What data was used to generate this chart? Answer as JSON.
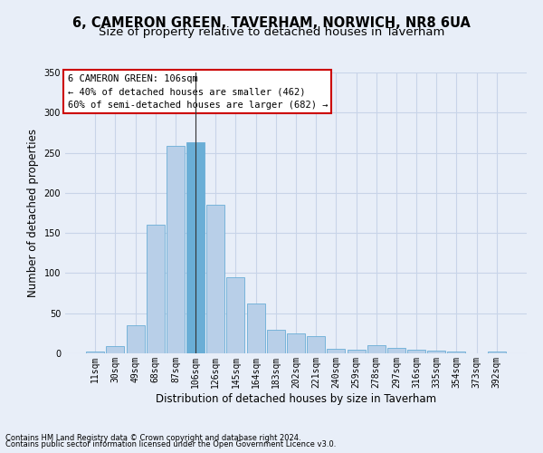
{
  "title1": "6, CAMERON GREEN, TAVERHAM, NORWICH, NR8 6UA",
  "title2": "Size of property relative to detached houses in Taverham",
  "xlabel": "Distribution of detached houses by size in Taverham",
  "ylabel": "Number of detached properties",
  "footer1": "Contains HM Land Registry data © Crown copyright and database right 2024.",
  "footer2": "Contains public sector information licensed under the Open Government Licence v3.0.",
  "bin_labels": [
    "11sqm",
    "30sqm",
    "49sqm",
    "68sqm",
    "87sqm",
    "106sqm",
    "126sqm",
    "145sqm",
    "164sqm",
    "183sqm",
    "202sqm",
    "221sqm",
    "240sqm",
    "259sqm",
    "278sqm",
    "297sqm",
    "316sqm",
    "335sqm",
    "354sqm",
    "373sqm",
    "392sqm"
  ],
  "bar_values": [
    2,
    9,
    35,
    160,
    258,
    263,
    185,
    95,
    62,
    29,
    25,
    22,
    6,
    5,
    10,
    7,
    5,
    3,
    2,
    0,
    2
  ],
  "highlight_index": 5,
  "bar_color_normal": "#b8cfe8",
  "bar_color_highlight": "#6aaed6",
  "bar_edgecolor": "#6aaed6",
  "annotation_text": "6 CAMERON GREEN: 106sqm\n← 40% of detached houses are smaller (462)\n60% of semi-detached houses are larger (682) →",
  "annotation_box_edgecolor": "#cc0000",
  "annotation_box_facecolor": "#ffffff",
  "ylim": [
    0,
    350
  ],
  "yticks": [
    0,
    50,
    100,
    150,
    200,
    250,
    300,
    350
  ],
  "grid_color": "#c8d4e8",
  "bg_color": "#e8eef8",
  "title1_fontsize": 10.5,
  "title2_fontsize": 9.5,
  "xlabel_fontsize": 8.5,
  "ylabel_fontsize": 8.5,
  "tick_fontsize": 7,
  "annotation_fontsize": 7.5,
  "footer_fontsize": 6
}
